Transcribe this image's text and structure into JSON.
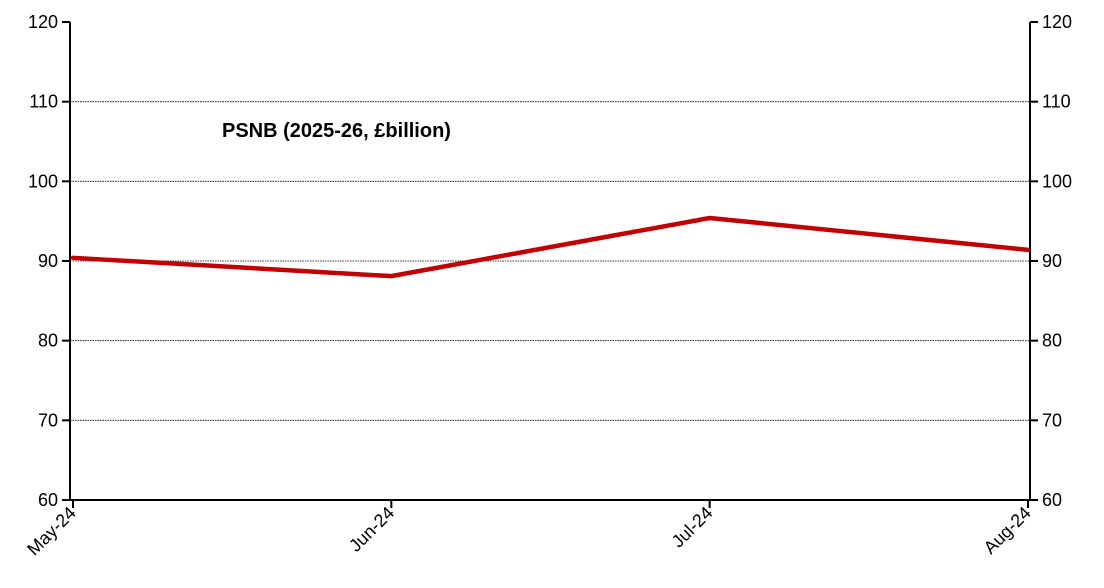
{
  "chart_data": {
    "type": "line",
    "title": "PSNB (2025-26, £billion)",
    "categories": [
      "May-24",
      "Jun-24",
      "Jul-24",
      "Aug-24"
    ],
    "series": [
      {
        "values": [
          90.4,
          88.1,
          95.4,
          91.4
        ],
        "color": "#C00000"
      }
    ],
    "ylim": [
      60,
      120
    ],
    "yticks": [
      "60",
      "70",
      "80",
      "90",
      "100",
      "110",
      "120"
    ],
    "y_axis_right_mirror": true,
    "grid": true,
    "legend": "none"
  }
}
